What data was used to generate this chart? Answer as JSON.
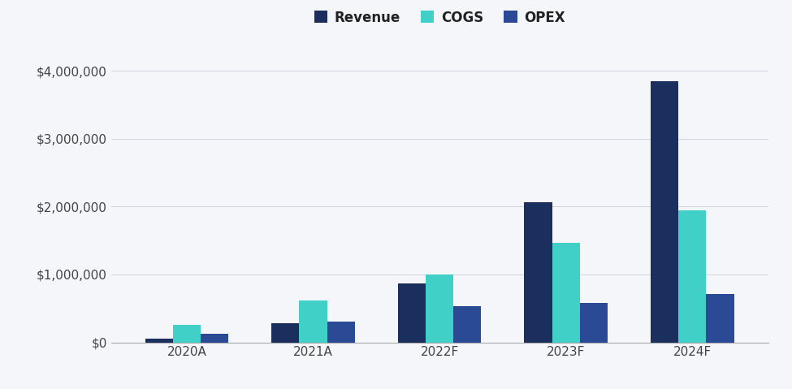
{
  "categories": [
    "2020A",
    "2021A",
    "2022F",
    "2023F",
    "2024F"
  ],
  "revenue": [
    50000,
    280000,
    870000,
    2060000,
    3850000
  ],
  "cogs": [
    260000,
    620000,
    1000000,
    1470000,
    1940000
  ],
  "opex": [
    130000,
    310000,
    530000,
    580000,
    710000
  ],
  "color_revenue": "#1b2f5e",
  "color_cogs": "#40d0c8",
  "color_opex": "#2b4a96",
  "ylim": [
    0,
    4300000
  ],
  "yticks": [
    0,
    1000000,
    2000000,
    3000000,
    4000000
  ],
  "legend_labels": [
    "Revenue",
    "COGS",
    "OPEX"
  ],
  "background_color": "#f4f6fa",
  "grid_color": "#d0d4dd",
  "bar_width": 0.22
}
